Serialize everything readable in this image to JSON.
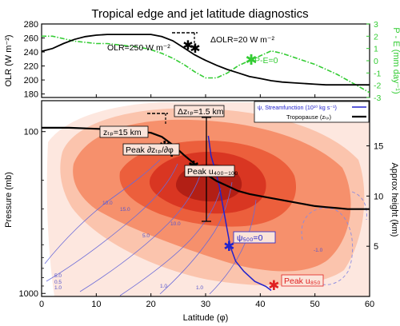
{
  "chart_data": [
    {
      "type": "line",
      "panel": "top",
      "title": "Tropical edge and jet latitude diagnostics",
      "xlabel": "",
      "ylabel": "OLR (W m⁻²)",
      "y2label": "P - E (mm day⁻¹)",
      "xlim": [
        0,
        60
      ],
      "ylim": [
        175,
        280
      ],
      "y2lim": [
        -3,
        3
      ],
      "yticks": [
        "180",
        "200",
        "220",
        "240",
        "260",
        "280"
      ],
      "y2ticks": [
        "-3",
        "-2",
        "-1",
        "0",
        "1",
        "2",
        "3"
      ],
      "colors": {
        "olr": "#000000",
        "pe": "#33cc33"
      },
      "series": [
        {
          "key": "olr",
          "axis": "left",
          "style": "solid",
          "x": [
            0,
            2,
            4,
            6,
            8,
            10,
            12,
            14,
            16,
            18,
            20,
            22,
            24,
            26,
            28,
            30,
            32,
            34,
            36,
            38,
            40,
            42,
            44,
            46,
            48,
            50,
            52,
            54,
            56,
            58,
            60
          ],
          "values": [
            241,
            245,
            252,
            258,
            262,
            264,
            265,
            265,
            265,
            265,
            265,
            262,
            256,
            246,
            236,
            228,
            221,
            215,
            210,
            205,
            202,
            199,
            197,
            196,
            195,
            194,
            193,
            193,
            193,
            193,
            193
          ]
        },
        {
          "key": "pe",
          "axis": "right",
          "style": "dashdot",
          "x": [
            0,
            2,
            4,
            6,
            8,
            10,
            12,
            14,
            16,
            18,
            20,
            22,
            24,
            26,
            28,
            30,
            32,
            34,
            36,
            38,
            40,
            42,
            44,
            46,
            48,
            50,
            52,
            54,
            56,
            58,
            60
          ],
          "values": [
            2.0,
            2.0,
            1.8,
            1.6,
            1.5,
            1.4,
            1.4,
            1.3,
            1.2,
            1.1,
            0.9,
            0.6,
            0.2,
            -0.3,
            -0.9,
            -1.4,
            -1.4,
            -1.0,
            -0.4,
            0.0,
            0.4,
            0.8,
            0.6,
            0.3,
            0.0,
            -0.3,
            -0.7,
            -1.1,
            -1.6,
            -2.1,
            -2.6
          ]
        }
      ],
      "annotations": {
        "olr250": "OLR=250 W m⁻²",
        "dolr": "ΔOLR=20 W m⁻²",
        "pe0": "P-E=0"
      }
    },
    {
      "type": "contour",
      "panel": "bottom",
      "xlabel": "Latitude (φ)",
      "ylabel": "Pressure (mb)",
      "y2label": "Approx height (km)",
      "xlim": [
        0,
        60
      ],
      "xticks": [
        "0",
        "10",
        "20",
        "30",
        "40",
        "50",
        "60"
      ],
      "yticks": [
        "100",
        "1000"
      ],
      "y2ticks": [
        "5",
        "10",
        "15"
      ],
      "colors": {
        "fill": [
          "#fde7df",
          "#fbc4ad",
          "#f6906c",
          "#ec5f3c",
          "#d93622",
          "#b21f15"
        ],
        "streamfunction": "#2222cc",
        "peak850": "#e02020"
      },
      "tropopause": {
        "x": [
          0,
          5,
          10,
          15,
          20,
          22,
          24,
          26,
          28,
          30,
          32,
          34,
          36,
          38,
          40,
          42,
          44,
          46,
          48,
          50,
          52,
          54,
          56,
          58,
          60
        ],
        "height_km": [
          16.8,
          16.8,
          16.7,
          16.6,
          16.3,
          15.9,
          15.1,
          14.1,
          13.2,
          12.2,
          11.5,
          11.0,
          10.5,
          10.2,
          10.0,
          9.8,
          9.6,
          9.4,
          9.2,
          9.0,
          8.9,
          8.8,
          8.7,
          8.7,
          8.7
        ]
      },
      "streamfunction_zero": {
        "x": [
          42.0,
          41.0,
          39.0,
          37.0,
          35.5,
          34.5,
          34.0,
          33.5,
          33.0,
          32.5,
          31.8,
          31.0,
          30.5
        ],
        "height_km": [
          0.6,
          1.0,
          1.5,
          2.5,
          3.5,
          5.0,
          6.5,
          8.0,
          9.5,
          11.0,
          12.5,
          14.0,
          16.0
        ]
      },
      "legend": {
        "streamfunction": "ψ, Streamfunction (10¹⁰ kg s⁻¹)",
        "tropopause": "Tropopause (zₜₚ)"
      },
      "annotations": {
        "dz": "Δzₜₚ=1.5 km",
        "ztp15": "zₜₚ=15 km",
        "dzdphi": "Peak ∂zₜₚ/∂φ",
        "peaku400": "Peak u₄₀₀₋₁₀₀",
        "psi500": "ψ₅₀₀=0",
        "peaku850": "Peak u₈₅₀"
      },
      "markers": [
        {
          "key": "ztp15",
          "x": 22.5,
          "height_km": 15.0
        },
        {
          "key": "ztp15b",
          "x": 23.8,
          "height_km": 14.4
        },
        {
          "key": "dzdphi",
          "x": 27.8,
          "height_km": 13.0
        },
        {
          "key": "psi500",
          "x": 34.3,
          "height_km": 5.0
        },
        {
          "key": "peaku850",
          "x": 42.5,
          "height_km": 1.1
        }
      ],
      "contour_labels": [
        "10.0",
        "15.0",
        "5.0",
        "0.5",
        "1.0",
        "1.0",
        "1.0",
        "-1.0",
        "10.0",
        "5.0"
      ]
    }
  ]
}
